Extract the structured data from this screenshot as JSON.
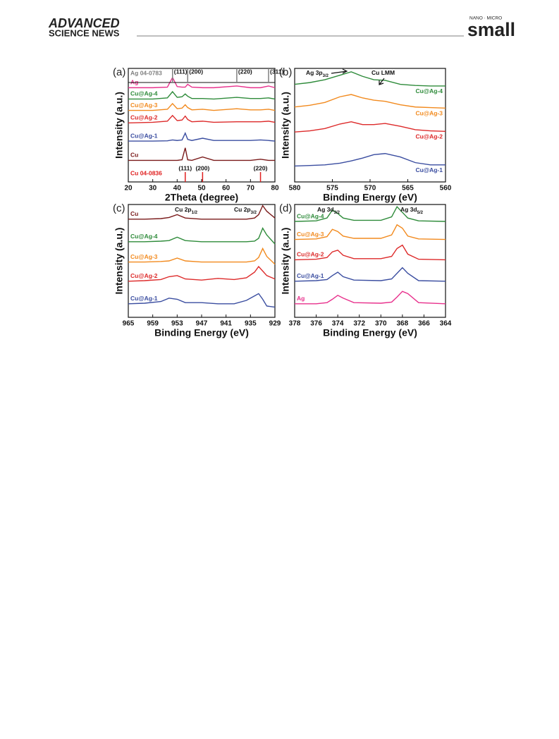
{
  "header": {
    "brand_top": "ADVANCED",
    "brand_bottom": "SCIENCE NEWS",
    "journal_top": "NANO · MICRO",
    "journal": "small"
  },
  "chart_data": [
    {
      "type": "line",
      "panel": "(a)",
      "x_label": "2Theta (degree)",
      "y_label": "Intensity (a.u.)",
      "xlim": [
        20,
        80
      ],
      "xticks": [
        20,
        30,
        40,
        50,
        60,
        70,
        80
      ],
      "ylim": [
        0,
        10
      ],
      "x": [
        20,
        30,
        36,
        38.1,
        40,
        42,
        43.3,
        44.3,
        46,
        50.4,
        55,
        64.4,
        70,
        74.1,
        77.4,
        80
      ],
      "series": [
        {
          "name": "Ag",
          "color": "#e8308c",
          "values": [
            8.3,
            8.3,
            8.35,
            9.2,
            8.4,
            8.35,
            8.35,
            8.6,
            8.35,
            8.3,
            8.3,
            8.45,
            8.3,
            8.3,
            8.45,
            8.3
          ]
        },
        {
          "name": "Cu@Ag-4",
          "color": "#2e8b3a",
          "values": [
            7.3,
            7.3,
            7.4,
            7.95,
            7.45,
            7.5,
            7.75,
            7.55,
            7.35,
            7.35,
            7.3,
            7.45,
            7.35,
            7.35,
            7.4,
            7.3
          ]
        },
        {
          "name": "Cu@Ag-3",
          "color": "#f28a1e",
          "values": [
            6.3,
            6.3,
            6.4,
            6.9,
            6.45,
            6.5,
            6.8,
            6.55,
            6.35,
            6.4,
            6.3,
            6.45,
            6.35,
            6.35,
            6.4,
            6.3
          ]
        },
        {
          "name": "Cu@Ag-2",
          "color": "#dd2a2a",
          "values": [
            5.2,
            5.25,
            5.35,
            5.85,
            5.4,
            5.45,
            5.8,
            5.5,
            5.3,
            5.35,
            5.25,
            5.3,
            5.3,
            5.3,
            5.35,
            5.25
          ]
        },
        {
          "name": "Cu@Ag-1",
          "color": "#3a4da0",
          "values": [
            3.6,
            3.6,
            3.62,
            3.7,
            3.65,
            3.7,
            4.3,
            3.75,
            3.65,
            3.85,
            3.65,
            3.65,
            3.65,
            3.7,
            3.65,
            3.6
          ]
        },
        {
          "name": "Cu",
          "color": "#7a1a1a",
          "values": [
            1.9,
            1.9,
            1.9,
            1.9,
            1.9,
            1.95,
            3.0,
            1.95,
            1.9,
            2.2,
            1.9,
            1.9,
            1.9,
            2.0,
            1.9,
            1.9
          ]
        }
      ],
      "references": [
        {
          "name": "Ag 04-0783",
          "color": "#808080",
          "positions": [
            38.1,
            44.3,
            64.4,
            77.4
          ],
          "labels": [
            "(111)",
            "(200)",
            "(220)",
            "(311)"
          ]
        },
        {
          "name": "Cu 04-0836",
          "color": "#e02020",
          "positions": [
            43.3,
            50.4,
            74.1
          ],
          "labels": [
            "(111)",
            "(200)",
            "(220)"
          ]
        }
      ]
    },
    {
      "type": "line",
      "panel": "(b)",
      "x_label": "Binding Energy (eV)",
      "y_label": "Intensity (a.u.)",
      "xlim": [
        580,
        560
      ],
      "xticks": [
        580,
        575,
        570,
        565,
        560
      ],
      "ylim": [
        0,
        10
      ],
      "x": [
        580,
        578,
        576,
        574,
        572.5,
        571,
        569.5,
        568,
        566,
        564,
        562,
        560
      ],
      "series": [
        {
          "name": "Cu@Ag-4",
          "color": "#2e8b3a",
          "values": [
            8.6,
            8.75,
            9.0,
            9.4,
            9.7,
            9.3,
            9.0,
            8.95,
            8.6,
            8.5,
            8.45,
            8.45
          ]
        },
        {
          "name": "Cu@Ag-3",
          "color": "#f28a1e",
          "values": [
            6.6,
            6.75,
            7.0,
            7.5,
            7.7,
            7.4,
            7.2,
            7.1,
            6.8,
            6.6,
            6.55,
            6.5
          ]
        },
        {
          "name": "Cu@Ag-2",
          "color": "#dd2a2a",
          "values": [
            4.4,
            4.5,
            4.7,
            5.1,
            5.3,
            5.05,
            5.05,
            5.15,
            4.9,
            4.6,
            4.5,
            4.45
          ]
        },
        {
          "name": "Cu@Ag-1",
          "color": "#3a4da0",
          "values": [
            1.4,
            1.45,
            1.5,
            1.65,
            1.85,
            2.1,
            2.4,
            2.5,
            2.2,
            1.7,
            1.5,
            1.5
          ]
        }
      ],
      "annotations": [
        {
          "text": "Ag 3p",
          "sub": "3/2"
        },
        {
          "text": "Cu LMM"
        }
      ]
    },
    {
      "type": "line",
      "panel": "(c)",
      "x_label": "Binding Energy (eV)",
      "y_label": "Intensity (a.u.)",
      "xlim": [
        965,
        929
      ],
      "xticks": [
        965,
        959,
        953,
        947,
        941,
        935,
        929
      ],
      "ylim": [
        0,
        10
      ],
      "x": [
        965,
        961,
        957,
        955,
        953,
        951,
        947,
        943,
        939,
        936,
        934,
        933,
        932,
        931,
        929
      ],
      "series": [
        {
          "name": "Cu",
          "color": "#7a1a1a",
          "values": [
            8.7,
            8.7,
            8.75,
            8.85,
            9.1,
            8.8,
            8.7,
            8.7,
            8.7,
            8.7,
            8.8,
            9.1,
            9.9,
            9.4,
            8.8
          ]
        },
        {
          "name": "Cu@Ag-4",
          "color": "#2e8b3a",
          "values": [
            6.7,
            6.7,
            6.75,
            6.8,
            7.1,
            6.8,
            6.7,
            6.7,
            6.7,
            6.7,
            6.75,
            7.0,
            7.9,
            7.3,
            6.5
          ]
        },
        {
          "name": "Cu@Ag-3",
          "color": "#f28a1e",
          "values": [
            4.9,
            4.9,
            4.95,
            5.0,
            5.25,
            5.0,
            4.9,
            4.9,
            4.9,
            4.9,
            5.0,
            5.3,
            6.1,
            5.4,
            4.7
          ]
        },
        {
          "name": "Cu@Ag-2",
          "color": "#dd2a2a",
          "values": [
            3.2,
            3.25,
            3.35,
            3.6,
            3.7,
            3.4,
            3.3,
            3.45,
            3.35,
            3.5,
            4.0,
            4.5,
            4.1,
            3.7,
            3.4
          ]
        },
        {
          "name": "Cu@Ag-1",
          "color": "#3a4da0",
          "values": [
            1.2,
            1.25,
            1.4,
            1.7,
            1.6,
            1.3,
            1.3,
            1.2,
            1.2,
            1.5,
            1.9,
            2.1,
            1.6,
            1.0,
            0.9
          ]
        }
      ],
      "annotations": [
        {
          "text": "Cu 2p",
          "sub": "1/2"
        },
        {
          "text": "Cu 2p",
          "sub": "3/2"
        }
      ]
    },
    {
      "type": "line",
      "panel": "(d)",
      "x_label": "Binding Energy (eV)",
      "y_label": "Intensity (a.u.)",
      "xlim": [
        378,
        364
      ],
      "xticks": [
        378,
        376,
        374,
        372,
        370,
        368,
        366,
        364
      ],
      "ylim": [
        0,
        10
      ],
      "x": [
        378,
        376,
        375,
        374.5,
        374,
        373.5,
        372.5,
        370,
        369,
        368.5,
        368,
        367.5,
        366.5,
        364
      ],
      "series": [
        {
          "name": "Cu@Ag-4",
          "color": "#2e8b3a",
          "values": [
            8.5,
            8.55,
            8.8,
            9.5,
            9.2,
            8.8,
            8.6,
            8.6,
            8.9,
            9.8,
            9.3,
            8.8,
            8.55,
            8.5
          ]
        },
        {
          "name": "Cu@Ag-3",
          "color": "#f28a1e",
          "values": [
            6.9,
            6.95,
            7.15,
            7.8,
            7.6,
            7.2,
            7.0,
            7.0,
            7.3,
            8.2,
            7.9,
            7.2,
            6.95,
            6.9
          ]
        },
        {
          "name": "Cu@Ag-2",
          "color": "#dd2a2a",
          "values": [
            5.1,
            5.15,
            5.3,
            5.8,
            5.95,
            5.5,
            5.2,
            5.2,
            5.4,
            6.1,
            6.4,
            5.6,
            5.15,
            5.1
          ]
        },
        {
          "name": "Cu@Ag-1",
          "color": "#3a4da0",
          "values": [
            3.2,
            3.25,
            3.35,
            3.7,
            4.0,
            3.6,
            3.3,
            3.25,
            3.4,
            3.9,
            4.4,
            3.9,
            3.25,
            3.2
          ]
        },
        {
          "name": "Ag",
          "color": "#e8308c",
          "values": [
            1.2,
            1.2,
            1.3,
            1.6,
            1.95,
            1.7,
            1.3,
            1.25,
            1.35,
            1.8,
            2.3,
            2.1,
            1.3,
            1.2
          ]
        }
      ],
      "annotations": [
        {
          "text": "Ag 3d",
          "sub": "3/2"
        },
        {
          "text": "Ag 3d",
          "sub": "5/2"
        }
      ]
    }
  ]
}
